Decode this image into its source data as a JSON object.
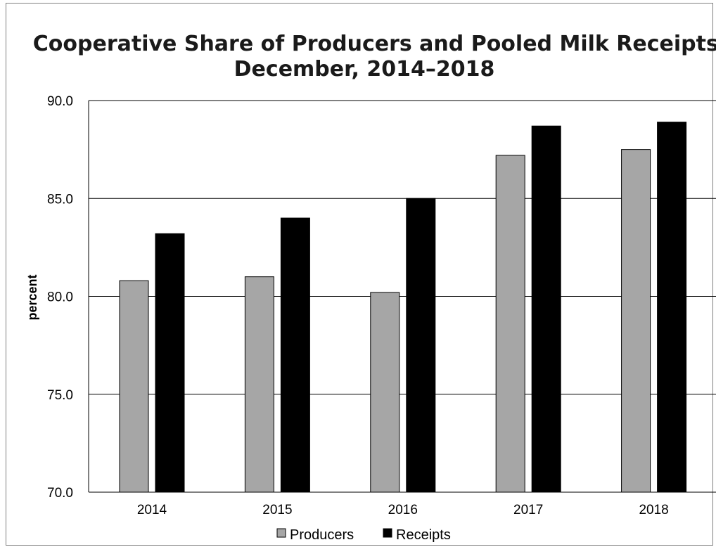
{
  "chart_data": {
    "type": "bar",
    "title": "Cooperative Share of Producers and Pooled Milk Receipts,",
    "subtitle": "December, 2014–2018",
    "xlabel": "",
    "ylabel": "percent",
    "ylim": [
      70,
      90
    ],
    "yticks": [
      "70.0",
      "75.0",
      "80.0",
      "85.0",
      "90.0"
    ],
    "categories": [
      "2014",
      "2015",
      "2016",
      "2017",
      "2018"
    ],
    "series": [
      {
        "name": "Producers",
        "values": [
          80.8,
          81.0,
          80.2,
          87.2,
          87.5
        ],
        "color": "#a6a6a6"
      },
      {
        "name": "Receipts",
        "values": [
          83.2,
          84.0,
          85.0,
          88.7,
          88.9
        ],
        "color": "#000000"
      }
    ],
    "grid": true,
    "legend_position": "bottom"
  }
}
